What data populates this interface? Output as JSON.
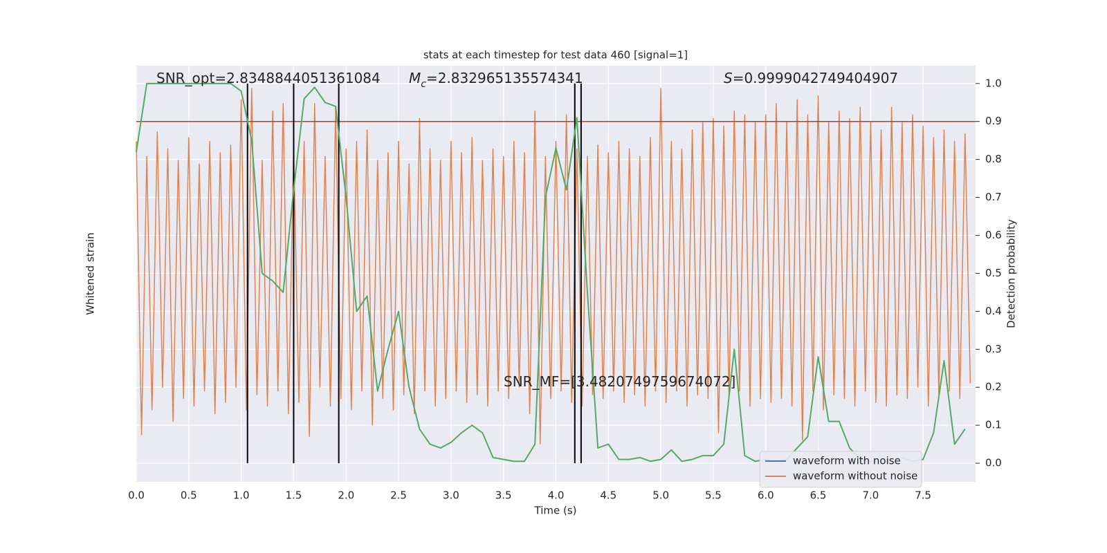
{
  "chart_data": {
    "type": "line",
    "title": "stats at each timestep for test data 460 [signal=1]",
    "xlabel": "Time (s)",
    "ylabel": "Whitened strain",
    "y2label": "Detection probability",
    "xlim": [
      0,
      8.0
    ],
    "ylim": [
      -1.1,
      1.1
    ],
    "y2lim": [
      -0.049,
      1.047
    ],
    "grid": true,
    "background": "#eaeaf2",
    "xticks": [
      {
        "value": 0,
        "label": "0.0"
      },
      {
        "value": 0.5,
        "label": "0.5"
      },
      {
        "value": 1,
        "label": "1.0"
      },
      {
        "value": 1.5,
        "label": "1.5"
      },
      {
        "value": 2,
        "label": "2.0"
      },
      {
        "value": 2.5,
        "label": "2.5"
      },
      {
        "value": 3,
        "label": "3.0"
      },
      {
        "value": 3.5,
        "label": "3.5"
      },
      {
        "value": 4,
        "label": "4.0"
      },
      {
        "value": 4.5,
        "label": "4.5"
      },
      {
        "value": 5,
        "label": "5.0"
      },
      {
        "value": 5.5,
        "label": "5.5"
      },
      {
        "value": 6,
        "label": "6.0"
      },
      {
        "value": 6.5,
        "label": "6.5"
      },
      {
        "value": 7,
        "label": "7.0"
      },
      {
        "value": 7.5,
        "label": "7.5"
      }
    ],
    "y2ticks": [
      {
        "value": 0,
        "label": "0.0"
      },
      {
        "value": 0.1,
        "label": "0.1"
      },
      {
        "value": 0.2,
        "label": "0.2"
      },
      {
        "value": 0.3,
        "label": "0.3"
      },
      {
        "value": 0.4,
        "label": "0.4"
      },
      {
        "value": 0.5,
        "label": "0.5"
      },
      {
        "value": 0.6,
        "label": "0.6"
      },
      {
        "value": 0.7,
        "label": "0.7"
      },
      {
        "value": 0.8,
        "label": "0.8"
      },
      {
        "value": 0.9,
        "label": "0.9"
      },
      {
        "value": 1,
        "label": "1.0"
      }
    ],
    "series": [
      {
        "color": "#dd8452",
        "axis": "y",
        "x": [
          0,
          0.05,
          0.1,
          0.15,
          0.2,
          0.25,
          0.3,
          0.35,
          0.4,
          0.45,
          0.5,
          0.55,
          0.6,
          0.65,
          0.7,
          0.75,
          0.8,
          0.85,
          0.9,
          0.95,
          1,
          1.05,
          1.1,
          1.15,
          1.2,
          1.25,
          1.3,
          1.35,
          1.4,
          1.45,
          1.5,
          1.55,
          1.6,
          1.65,
          1.7,
          1.75,
          1.8,
          1.85,
          1.9,
          1.95,
          2,
          2.05,
          2.1,
          2.15,
          2.2,
          2.25,
          2.3,
          2.35,
          2.4,
          2.45,
          2.5,
          2.55,
          2.6,
          2.65,
          2.7,
          2.75,
          2.8,
          2.85,
          2.9,
          2.95,
          3,
          3.05,
          3.1,
          3.15,
          3.2,
          3.25,
          3.3,
          3.35,
          3.4,
          3.45,
          3.5,
          3.55,
          3.6,
          3.65,
          3.7,
          3.75,
          3.8,
          3.85,
          3.9,
          3.95,
          4,
          4.05,
          4.1,
          4.15,
          4.2,
          4.25,
          4.3,
          4.35,
          4.4,
          4.45,
          4.5,
          4.55,
          4.6,
          4.65,
          4.7,
          4.75,
          4.8,
          4.85,
          4.9,
          4.95,
          5,
          5.05,
          5.1,
          5.15,
          5.2,
          5.25,
          5.3,
          5.35,
          5.4,
          5.45,
          5.5,
          5.55,
          5.6,
          5.65,
          5.7,
          5.75,
          5.8,
          5.85,
          5.9,
          5.95,
          6,
          6.05,
          6.1,
          6.15,
          6.2,
          6.25,
          6.3,
          6.35,
          6.4,
          6.45,
          6.5,
          6.55,
          6.6,
          6.65,
          6.7,
          6.75,
          6.8,
          6.85,
          6.9,
          6.95,
          7,
          7.05,
          7.1,
          7.15,
          7.2,
          7.25,
          7.3,
          7.35,
          7.4,
          7.45,
          7.5,
          7.55,
          7.6,
          7.65,
          7.7,
          7.75,
          7.8,
          7.85,
          7.9,
          7.95
        ],
        "values": [
          0.7,
          -0.85,
          0.62,
          -0.72,
          0.75,
          -0.6,
          0.66,
          -0.78,
          0.6,
          -0.66,
          0.72,
          -0.7,
          0.58,
          -0.62,
          0.7,
          -0.74,
          0.64,
          -0.68,
          0.68,
          -0.6,
          0.92,
          -0.72,
          0.98,
          -0.64,
          0.6,
          -0.7,
          0.86,
          -0.62,
          0.9,
          -0.74,
          0.66,
          -0.68,
          0.7,
          -0.86,
          0.9,
          -0.6,
          0.62,
          -0.7,
          0.88,
          -0.66,
          0.66,
          -0.72,
          0.7,
          -0.62,
          0.76,
          -0.8,
          0.6,
          -0.66,
          0.64,
          -0.72,
          0.7,
          -0.64,
          0.58,
          -0.74,
          0.82,
          -0.62,
          0.66,
          -0.7,
          0.6,
          -0.66,
          0.7,
          -0.62,
          0.64,
          -0.68,
          0.72,
          -0.64,
          0.6,
          -0.7,
          0.66,
          -0.62,
          0.62,
          -0.66,
          0.7,
          -0.6,
          0.64,
          -0.74,
          0.86,
          -0.9,
          0.62,
          -0.66,
          0.7,
          -0.62,
          0.84,
          -0.68,
          0.66,
          -0.7,
          0.62,
          -0.64,
          0.68,
          -0.66,
          0.64,
          -0.62,
          0.7,
          -0.68,
          0.66,
          -0.64,
          0.62,
          -0.7,
          0.72,
          -0.62,
          0.98,
          -0.68,
          0.7,
          -0.62,
          0.66,
          -0.7,
          0.76,
          -0.64,
          0.8,
          -0.66,
          0.82,
          -0.84,
          0.78,
          -0.66,
          0.86,
          -0.62,
          0.84,
          -0.7,
          0.8,
          -0.66,
          0.84,
          -0.68,
          0.9,
          -0.66,
          0.8,
          -0.7,
          0.92,
          -0.88,
          0.84,
          -0.62,
          0.94,
          -0.72,
          0.8,
          -0.64,
          0.86,
          -0.66,
          0.82,
          -0.7,
          0.88,
          -0.62,
          0.8,
          -0.68,
          0.76,
          -0.7,
          0.88,
          -0.64,
          0.8,
          -0.66,
          0.84,
          -0.6,
          0.78,
          -0.7,
          0.72,
          -0.64,
          0.76,
          -0.62,
          0.7,
          -0.66,
          0.74,
          -0.58
        ]
      },
      {
        "color": "#55a868",
        "axis": "y2",
        "x": [
          0,
          0.1,
          0.2,
          0.3,
          0.4,
          0.5,
          0.6,
          0.7,
          0.8,
          0.9,
          1,
          1.1,
          1.2,
          1.3,
          1.4,
          1.5,
          1.6,
          1.7,
          1.8,
          1.9,
          2,
          2.1,
          2.2,
          2.3,
          2.4,
          2.5,
          2.6,
          2.7,
          2.8,
          2.9,
          3,
          3.1,
          3.2,
          3.3,
          3.4,
          3.5,
          3.6,
          3.7,
          3.8,
          3.9,
          4,
          4.1,
          4.2,
          4.3,
          4.4,
          4.5,
          4.6,
          4.7,
          4.8,
          4.9,
          5,
          5.1,
          5.2,
          5.3,
          5.4,
          5.5,
          5.6,
          5.7,
          5.8,
          5.9,
          6,
          6.1,
          6.2,
          6.3,
          6.4,
          6.5,
          6.6,
          6.7,
          6.8,
          6.9,
          7,
          7.1,
          7.2,
          7.3,
          7.4,
          7.5,
          7.6,
          7.7,
          7.8,
          7.9
        ],
        "values": [
          0.82,
          1.0,
          1.0,
          1.0,
          1.0,
          1.0,
          1.0,
          1.0,
          1.0,
          1.0,
          0.98,
          0.85,
          0.5,
          0.48,
          0.45,
          0.72,
          0.96,
          0.99,
          0.95,
          0.94,
          0.7,
          0.4,
          0.44,
          0.19,
          0.3,
          0.4,
          0.2,
          0.09,
          0.05,
          0.04,
          0.055,
          0.08,
          0.1,
          0.08,
          0.015,
          0.01,
          0.005,
          0.005,
          0.05,
          0.7,
          0.83,
          0.72,
          0.91,
          0.45,
          0.04,
          0.05,
          0.01,
          0.01,
          0.015,
          0.005,
          0.01,
          0.035,
          0.005,
          0.01,
          0.02,
          0.02,
          0.05,
          0.3,
          0.02,
          0.005,
          0.01,
          0.005,
          0.01,
          0.04,
          0.07,
          0.28,
          0.11,
          0.11,
          0.04,
          0.01,
          0.005,
          0.005,
          0.01,
          0.015,
          0.005,
          0.01,
          0.08,
          0.27,
          0.05,
          0.09
        ]
      }
    ],
    "vlines": [
      1.06,
      1.5,
      1.93,
      4.18,
      4.24
    ],
    "vline_color": "#000000",
    "threshold": 0.9,
    "threshold_color": "#c0392b",
    "annotations": [
      {
        "parts": [
          {
            "text": "SNR_opt=2.8348844051361084"
          }
        ]
      },
      {
        "parts": [
          {
            "text": "M",
            "italic": true
          },
          {
            "text": "c",
            "italic": true,
            "sub": true
          },
          {
            "text": "=2.832965135574341"
          }
        ]
      },
      {
        "parts": [
          {
            "text": "S",
            "italic": true
          },
          {
            "text": "=0.9999042749404907"
          }
        ]
      },
      {
        "parts": [
          {
            "text": "SNR_MF=[3.4820749759674072]"
          }
        ]
      }
    ],
    "legend": {
      "loc": "lower right",
      "entries": [
        {
          "name": "waveform with noise",
          "color": "#4c72b0"
        },
        {
          "name": "waveform without noise",
          "color": "#dd8452"
        }
      ]
    }
  }
}
